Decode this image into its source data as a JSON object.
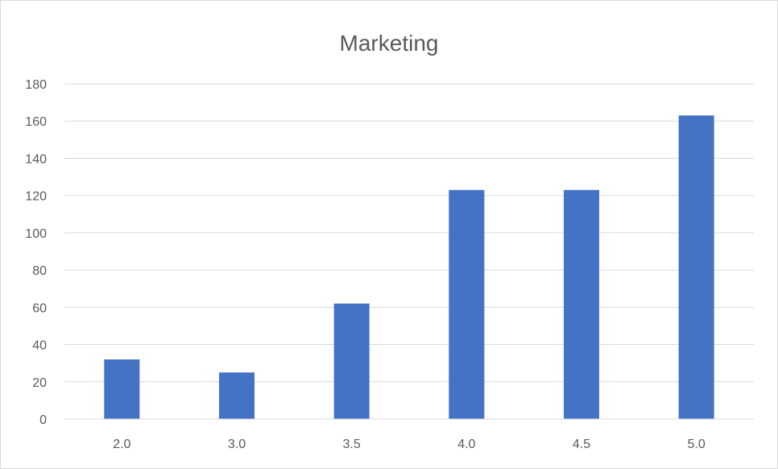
{
  "chart_data": {
    "type": "bar",
    "title": "Marketing",
    "xlabel": "",
    "ylabel": "",
    "categories": [
      "2.0",
      "3.0",
      "3.5",
      "4.0",
      "4.5",
      "5.0"
    ],
    "values": [
      32,
      25,
      62,
      123,
      123,
      163
    ],
    "ylim": [
      0,
      180
    ],
    "yticks": [
      0,
      20,
      40,
      60,
      80,
      100,
      120,
      140,
      160,
      180
    ],
    "grid": true,
    "legend": "none",
    "colors": {
      "bar": "#4472C4",
      "grid": "#D9D9D9",
      "text": "#595959"
    }
  }
}
